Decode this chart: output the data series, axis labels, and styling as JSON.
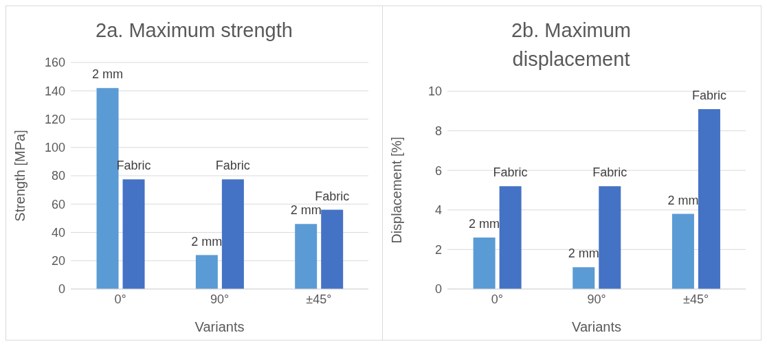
{
  "chart_data": [
    {
      "type": "bar",
      "title": "2a. Maximum strength",
      "xlabel": "Variants",
      "ylabel": "Strength [MPa]",
      "categories": [
        "0°",
        "90°",
        "±45°"
      ],
      "series": [
        {
          "name": "2 mm",
          "color": "#5b9bd5",
          "values": [
            142,
            24,
            46
          ]
        },
        {
          "name": "Fabric",
          "color": "#4472c4",
          "values": [
            77.5,
            77.5,
            56
          ]
        }
      ],
      "ylim": [
        0,
        160
      ],
      "yticks": [
        0,
        20,
        40,
        60,
        80,
        100,
        120,
        140,
        160
      ],
      "grid": "y"
    },
    {
      "type": "bar",
      "title": "2b. Maximum displacement",
      "xlabel": "Variants",
      "ylabel": "Displacement [%]",
      "categories": [
        "0°",
        "90°",
        "±45°"
      ],
      "series": [
        {
          "name": "2 mm",
          "color": "#5b9bd5",
          "values": [
            2.6,
            1.1,
            3.8
          ]
        },
        {
          "name": "Fabric",
          "color": "#4472c4",
          "values": [
            5.2,
            5.2,
            9.1
          ]
        }
      ],
      "ylim": [
        0,
        10
      ],
      "yticks": [
        0,
        2,
        4,
        6,
        8,
        10
      ],
      "grid": "y"
    }
  ]
}
